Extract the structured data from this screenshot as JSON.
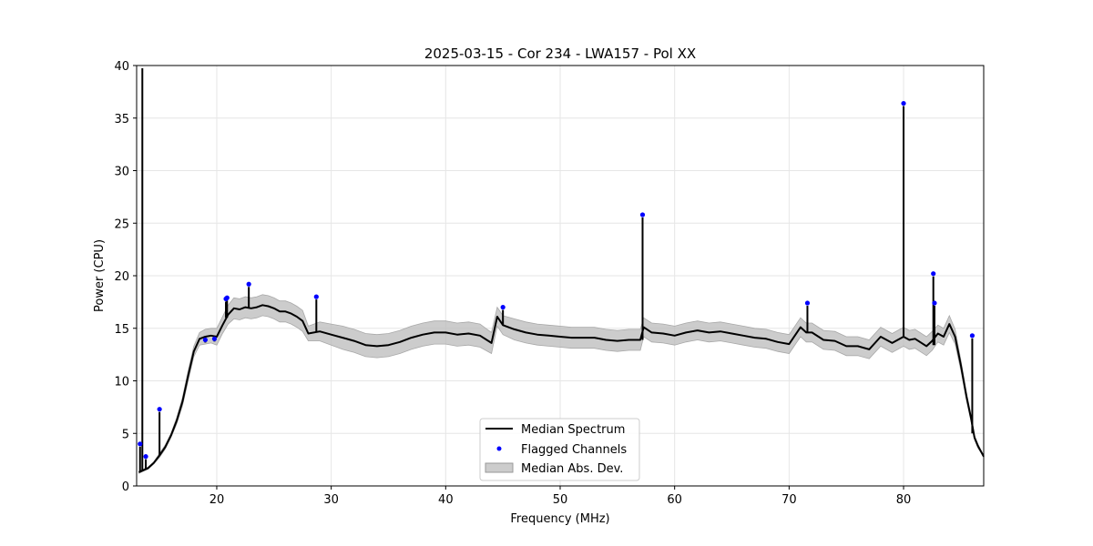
{
  "chart_data": {
    "type": "line",
    "title": "2025-03-15 - Cor 234 - LWA157 - Pol XX",
    "xlabel": "Frequency (MHz)",
    "ylabel": "Power (CPU)",
    "xlim": [
      13,
      87
    ],
    "ylim": [
      0,
      40
    ],
    "xticks": [
      20,
      30,
      40,
      50,
      60,
      70,
      80
    ],
    "yticks": [
      0,
      5,
      10,
      15,
      20,
      25,
      30,
      35,
      40
    ],
    "grid": true,
    "legend": {
      "position": "lower-center",
      "entries": [
        "Median Spectrum",
        "Flagged Channels",
        "Median Abs. Dev."
      ]
    },
    "series": [
      {
        "name": "Median Spectrum",
        "color": "#000000",
        "x": [
          13.2,
          13.6,
          13.8,
          14.0,
          14.5,
          15.0,
          15.5,
          16.0,
          16.5,
          17.0,
          17.5,
          18.0,
          18.5,
          19.0,
          19.5,
          20.0,
          20.5,
          21.0,
          21.5,
          22.0,
          22.5,
          23.0,
          23.5,
          24.0,
          24.5,
          25.0,
          25.5,
          26.0,
          26.5,
          27.0,
          27.5,
          28.0,
          29.0,
          30.0,
          31.0,
          32.0,
          33.0,
          34.0,
          35.0,
          36.0,
          37.0,
          38.0,
          39.0,
          40.0,
          41.0,
          42.0,
          43.0,
          44.0,
          44.5,
          45.0,
          46.0,
          47.0,
          48.0,
          49.0,
          50.0,
          51.0,
          52.0,
          53.0,
          54.0,
          55.0,
          56.0,
          57.0,
          57.3,
          58.0,
          59.0,
          60.0,
          61.0,
          62.0,
          63.0,
          64.0,
          65.0,
          66.0,
          67.0,
          68.0,
          69.0,
          70.0,
          71.0,
          71.5,
          72.0,
          73.0,
          74.0,
          75.0,
          76.0,
          77.0,
          78.0,
          79.0,
          80.0,
          80.5,
          81.0,
          82.0,
          82.5,
          83.0,
          83.5,
          84.0,
          84.5,
          85.0,
          85.5,
          85.9,
          86.2,
          86.5,
          86.8,
          87.0
        ],
        "values": [
          1.3,
          1.5,
          1.6,
          1.7,
          2.2,
          2.9,
          3.7,
          4.8,
          6.2,
          8.0,
          10.5,
          12.8,
          14.0,
          14.2,
          14.3,
          14.2,
          15.3,
          16.3,
          16.9,
          16.8,
          17.0,
          16.9,
          17.0,
          17.2,
          17.1,
          16.9,
          16.6,
          16.6,
          16.4,
          16.1,
          15.7,
          14.5,
          14.7,
          14.4,
          14.1,
          13.8,
          13.4,
          13.3,
          13.4,
          13.7,
          14.1,
          14.4,
          14.6,
          14.6,
          14.4,
          14.5,
          14.3,
          13.6,
          16.1,
          15.3,
          14.9,
          14.6,
          14.4,
          14.3,
          14.2,
          14.1,
          14.1,
          14.1,
          13.9,
          13.8,
          13.9,
          13.9,
          15.1,
          14.6,
          14.5,
          14.3,
          14.6,
          14.8,
          14.6,
          14.7,
          14.5,
          14.3,
          14.1,
          14.0,
          13.7,
          13.5,
          15.1,
          14.6,
          14.6,
          13.9,
          13.8,
          13.3,
          13.3,
          13.0,
          14.2,
          13.6,
          14.2,
          13.9,
          14.0,
          13.3,
          13.8,
          14.5,
          14.2,
          15.4,
          14.2,
          11.5,
          8.5,
          6.4,
          4.6,
          3.8,
          3.2,
          2.8
        ]
      },
      {
        "name": "Median Abs. Dev.",
        "color": "#bbbbbb",
        "x": [
          13.2,
          13.6,
          13.8,
          14.0,
          14.5,
          15.0,
          15.5,
          16.0,
          16.5,
          17.0,
          17.5,
          18.0,
          18.5,
          19.0,
          19.5,
          20.0,
          20.5,
          21.0,
          21.5,
          22.0,
          22.5,
          23.0,
          23.5,
          24.0,
          24.5,
          25.0,
          25.5,
          26.0,
          26.5,
          27.0,
          27.5,
          28.0,
          29.0,
          30.0,
          31.0,
          32.0,
          33.0,
          34.0,
          35.0,
          36.0,
          37.0,
          38.0,
          39.0,
          40.0,
          41.0,
          42.0,
          43.0,
          44.0,
          44.5,
          45.0,
          46.0,
          47.0,
          48.0,
          49.0,
          50.0,
          51.0,
          52.0,
          53.0,
          54.0,
          55.0,
          56.0,
          57.0,
          57.3,
          58.0,
          59.0,
          60.0,
          61.0,
          62.0,
          63.0,
          64.0,
          65.0,
          66.0,
          67.0,
          68.0,
          69.0,
          70.0,
          71.0,
          71.5,
          72.0,
          73.0,
          74.0,
          75.0,
          76.0,
          77.0,
          78.0,
          79.0,
          80.0,
          80.5,
          81.0,
          82.0,
          82.5,
          83.0,
          83.5,
          84.0,
          84.5,
          85.0,
          85.5,
          85.9,
          86.2,
          86.5,
          86.8,
          87.0
        ],
        "lower": [
          1.2,
          1.4,
          1.5,
          1.6,
          2.1,
          2.7,
          3.5,
          4.6,
          5.9,
          7.6,
          10.0,
          12.3,
          13.4,
          13.5,
          13.6,
          13.4,
          14.5,
          15.4,
          15.9,
          15.8,
          16.0,
          15.9,
          16.0,
          16.2,
          16.1,
          15.9,
          15.6,
          15.6,
          15.4,
          15.1,
          14.7,
          13.8,
          13.8,
          13.4,
          13.0,
          12.7,
          12.3,
          12.2,
          12.3,
          12.6,
          13.0,
          13.3,
          13.5,
          13.5,
          13.3,
          13.4,
          13.2,
          12.6,
          15.2,
          14.4,
          13.9,
          13.6,
          13.4,
          13.3,
          13.2,
          13.1,
          13.1,
          13.1,
          12.9,
          12.8,
          12.9,
          12.9,
          14.2,
          13.7,
          13.6,
          13.4,
          13.7,
          13.9,
          13.7,
          13.8,
          13.6,
          13.4,
          13.2,
          13.1,
          12.8,
          12.6,
          14.2,
          13.7,
          13.7,
          13.0,
          12.9,
          12.4,
          12.4,
          12.1,
          13.3,
          12.7,
          13.3,
          13.0,
          13.1,
          12.4,
          12.9,
          13.7,
          13.4,
          14.6,
          13.5,
          11.0,
          8.1,
          6.1,
          4.4,
          3.6,
          3.1,
          2.7
        ],
        "upper": [
          1.4,
          1.6,
          1.7,
          1.8,
          2.3,
          3.1,
          3.9,
          5.0,
          6.5,
          8.4,
          11.0,
          13.3,
          14.6,
          14.9,
          15.0,
          15.0,
          16.1,
          17.2,
          17.9,
          17.8,
          18.0,
          17.9,
          18.0,
          18.2,
          18.1,
          17.9,
          17.6,
          17.6,
          17.4,
          17.1,
          16.7,
          15.2,
          15.6,
          15.4,
          15.2,
          14.9,
          14.5,
          14.4,
          14.5,
          14.8,
          15.2,
          15.5,
          15.7,
          15.7,
          15.5,
          15.6,
          15.4,
          14.6,
          17.0,
          16.2,
          15.9,
          15.6,
          15.4,
          15.3,
          15.2,
          15.1,
          15.1,
          15.1,
          14.9,
          14.8,
          14.9,
          14.9,
          16.0,
          15.5,
          15.4,
          15.2,
          15.5,
          15.7,
          15.5,
          15.6,
          15.4,
          15.2,
          15.0,
          14.9,
          14.6,
          14.4,
          16.0,
          15.5,
          15.5,
          14.8,
          14.7,
          14.2,
          14.2,
          13.9,
          15.1,
          14.5,
          15.1,
          14.8,
          14.9,
          14.2,
          14.7,
          15.3,
          15.0,
          16.2,
          14.9,
          12.0,
          8.9,
          6.7,
          4.8,
          4.0,
          3.3,
          2.9
        ]
      },
      {
        "name": "Flagged Channels",
        "color": "#0000ff",
        "x": [
          13.3,
          13.5,
          13.8,
          15.0,
          19.0,
          19.8,
          20.8,
          20.9,
          22.8,
          28.7,
          45.0,
          57.2,
          71.6,
          80.0,
          82.6,
          82.7,
          86.0
        ],
        "values": [
          4.0,
          40.0,
          2.8,
          7.3,
          13.9,
          14.0,
          17.8,
          17.9,
          19.2,
          18.0,
          17.0,
          25.8,
          17.4,
          36.4,
          20.2,
          17.4,
          14.3
        ],
        "base": [
          1.3,
          1.4,
          1.6,
          2.9,
          14.2,
          14.2,
          16.0,
          16.0,
          16.9,
          14.6,
          15.3,
          13.9,
          14.6,
          14.2,
          13.4,
          13.4,
          5.0
        ]
      }
    ]
  }
}
